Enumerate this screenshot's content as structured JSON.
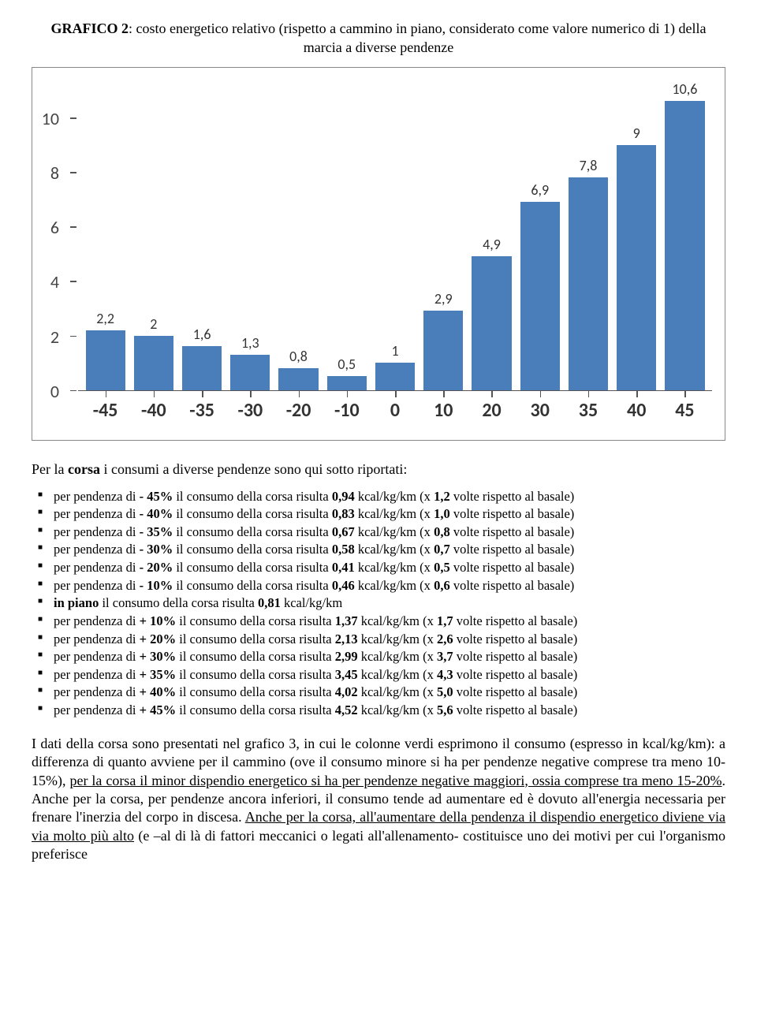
{
  "title_html": "<b>GRAFICO 2</b>: costo energetico relativo (rispetto a cammino in piano, considerato come valore numerico di 1) della marcia a diverse pendenze",
  "chart": {
    "type": "bar",
    "bar_color": "#4a7ebb",
    "axis_color": "#555555",
    "background_color": "#ffffff",
    "value_font_family": "Calibri",
    "value_fontsize": 18,
    "xlabel_fontsize": 24,
    "ylabel_fontsize": 22,
    "ylim_max": 11,
    "yticks": [
      0,
      2,
      4,
      6,
      8,
      10
    ],
    "categories": [
      "-45",
      "-40",
      "-35",
      "-30",
      "-20",
      "-10",
      "0",
      "10",
      "20",
      "30",
      "35",
      "40",
      "45"
    ],
    "values": [
      2.2,
      2,
      1.6,
      1.3,
      0.8,
      0.5,
      1,
      2.9,
      4.9,
      6.9,
      7.8,
      9,
      10.6
    ],
    "value_labels": [
      "2,2",
      "2",
      "1,6",
      "1,3",
      "0,8",
      "0,5",
      "1",
      "2,9",
      "4,9",
      "6,9",
      "7,8",
      "9",
      "10,6"
    ]
  },
  "intro_html": "Per la <b>corsa</b> i consumi a diverse pendenze sono qui sotto riportati:",
  "bullets": [
    "per pendenza di <b>- 45%</b> il consumo della corsa risulta <b>0,94</b> kcal/kg/km (x <b>1,2</b> volte rispetto al basale)",
    "per pendenza di <b>- 40%</b> il consumo della corsa risulta <b>0,83</b> kcal/kg/km (x <b>1,0</b> volte rispetto al basale)",
    "per pendenza di <b>- 35%</b> il consumo della corsa risulta <b>0,67</b> kcal/kg/km (x <b>0,8</b> volte rispetto al basale)",
    "per pendenza di <b>- 30%</b> il consumo della corsa risulta <b>0,58</b> kcal/kg/km (x <b>0,7</b> volte rispetto al basale)",
    "per pendenza di <b>- 20%</b> il consumo della corsa risulta <b>0,41</b> kcal/kg/km (x <b>0,5</b> volte rispetto al basale)",
    "per pendenza di <b>- 10%</b> il consumo della corsa risulta <b>0,46</b> kcal/kg/km (x <b>0,6</b> volte rispetto al basale)",
    "<b>in piano</b> il consumo della corsa risulta <b>0,81</b> kcal/kg/km",
    "per pendenza di <b>+ 10%</b> il consumo della corsa risulta <b>1,37</b> kcal/kg/km (x <b>1,7</b> volte rispetto al basale)",
    "per pendenza di <b>+ 20%</b> il consumo della corsa risulta <b>2,13</b> kcal/kg/km (x <b>2,6</b> volte rispetto al basale)",
    "per pendenza di <b>+ 30%</b> il consumo della corsa risulta <b>2,99</b> kcal/kg/km (x <b>3,7</b> volte rispetto al basale)",
    "per pendenza di <b>+ 35%</b> il consumo della corsa risulta <b>3,45</b> kcal/kg/km (x <b>4,3</b> volte rispetto al basale)",
    "per pendenza di <b>+ 40%</b> il consumo della corsa risulta <b>4,02</b> kcal/kg/km (x <b>5,0</b> volte rispetto al basale)",
    "per pendenza di <b>+ 45%</b> il consumo della corsa risulta <b>4,52</b> kcal/kg/km (x <b>5,6</b> volte rispetto al basale)"
  ],
  "body_html": "I dati della corsa sono presentati nel grafico 3, in cui le colonne verdi esprimono il consumo (espresso in kcal/kg/km): a differenza di quanto avviene per il cammino (ove il consumo minore si ha per pendenze negative comprese tra meno 10-15%), <span class=\"u\">per la corsa il minor dispendio energetico si ha per pendenze negative maggiori, ossia comprese tra meno 15-20%</span>. Anche per la corsa, per pendenze ancora inferiori, il consumo tende ad aumentare ed è dovuto all'energia necessaria per frenare l'inerzia del corpo in discesa. <span class=\"u\">Anche per la corsa, all'aumentare della pendenza il dispendio energetico diviene via via molto più alto</span> (e –al di là di fattori meccanici o legati all'allenamento- costituisce uno dei motivi per cui l'organismo preferisce"
}
